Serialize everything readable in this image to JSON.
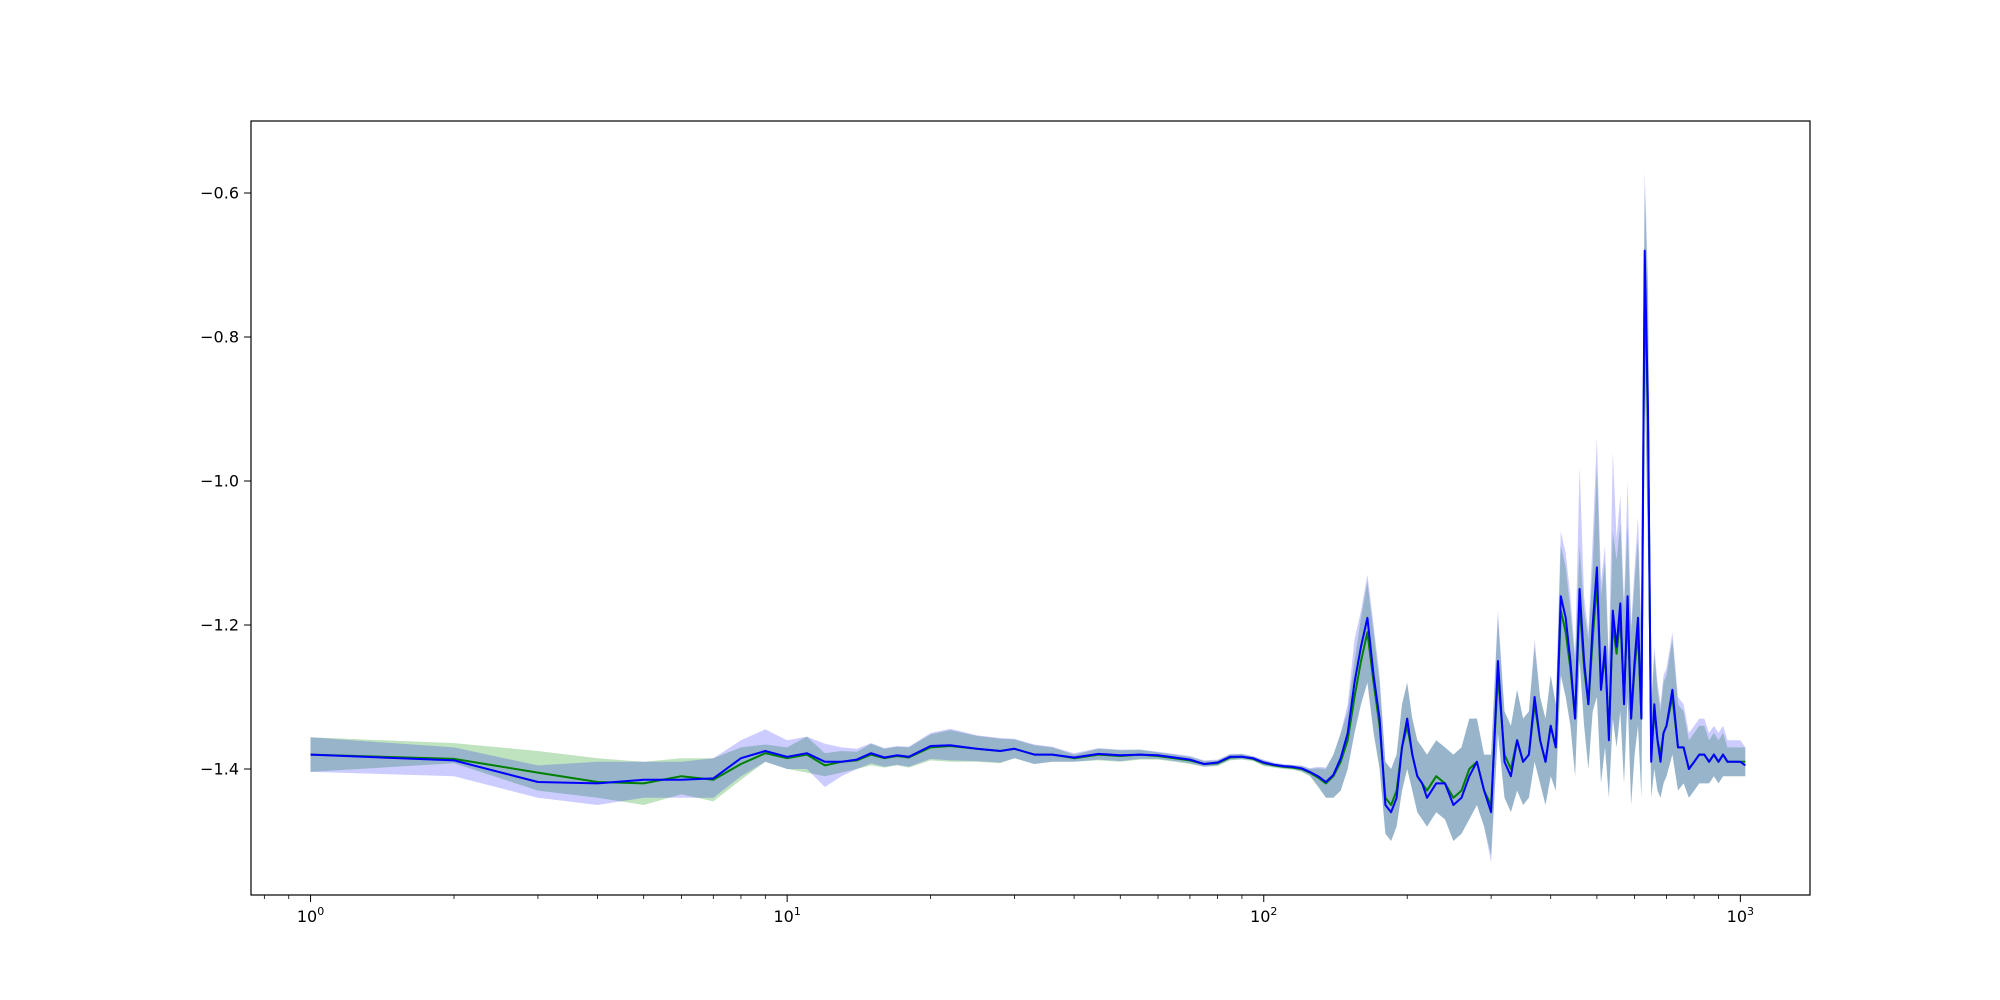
{
  "chart_data": {
    "type": "line",
    "title": "",
    "xlabel": "",
    "ylabel": "",
    "xscale": "log",
    "xlim": [
      0.75,
      1400
    ],
    "ylim": [
      -1.575,
      -0.5
    ],
    "grid": false,
    "legend": "none",
    "x_ticks": [
      {
        "value": 1,
        "base": "10",
        "exp": "0"
      },
      {
        "value": 10,
        "base": "10",
        "exp": "1"
      },
      {
        "value": 100,
        "base": "10",
        "exp": "2"
      },
      {
        "value": 1000,
        "base": "10",
        "exp": "3"
      }
    ],
    "y_ticks": [
      {
        "value": -0.6,
        "label": "−0.6"
      },
      {
        "value": -0.8,
        "label": "−0.8"
      },
      {
        "value": -1.0,
        "label": "−1.0"
      },
      {
        "value": -1.2,
        "label": "−1.2"
      },
      {
        "value": -1.4,
        "label": "−1.4"
      }
    ],
    "x": [
      1,
      2,
      3,
      4,
      5,
      6,
      7,
      8,
      9,
      10,
      11,
      12,
      13,
      14,
      15,
      16,
      17,
      18,
      20,
      22,
      25,
      28,
      30,
      33,
      36,
      40,
      45,
      50,
      55,
      60,
      65,
      70,
      75,
      80,
      85,
      90,
      95,
      100,
      105,
      110,
      115,
      120,
      125,
      130,
      135,
      140,
      145,
      150,
      155,
      160,
      165,
      170,
      175,
      180,
      185,
      190,
      195,
      200,
      205,
      210,
      215,
      220,
      230,
      240,
      250,
      260,
      270,
      280,
      290,
      300,
      310,
      320,
      330,
      340,
      350,
      360,
      370,
      380,
      390,
      400,
      410,
      420,
      430,
      440,
      450,
      460,
      470,
      480,
      490,
      500,
      510,
      520,
      530,
      540,
      550,
      560,
      570,
      580,
      590,
      600,
      610,
      620,
      630,
      640,
      650,
      660,
      670,
      680,
      690,
      700,
      720,
      740,
      760,
      780,
      800,
      820,
      840,
      860,
      880,
      900,
      920,
      940,
      960,
      980,
      1000,
      1024
    ],
    "series": [
      {
        "color": "#008000",
        "band_color": "#2ca02c",
        "band_opacity": 0.3,
        "values": [
          -1.38,
          -1.386,
          -1.405,
          -1.418,
          -1.42,
          -1.41,
          -1.415,
          -1.393,
          -1.378,
          -1.385,
          -1.38,
          -1.395,
          -1.39,
          -1.388,
          -1.38,
          -1.385,
          -1.382,
          -1.384,
          -1.37,
          -1.368,
          -1.372,
          -1.375,
          -1.372,
          -1.38,
          -1.38,
          -1.385,
          -1.38,
          -1.382,
          -1.38,
          -1.382,
          -1.385,
          -1.388,
          -1.393,
          -1.392,
          -1.384,
          -1.383,
          -1.386,
          -1.392,
          -1.395,
          -1.397,
          -1.398,
          -1.4,
          -1.405,
          -1.412,
          -1.42,
          -1.41,
          -1.39,
          -1.36,
          -1.3,
          -1.25,
          -1.21,
          -1.28,
          -1.34,
          -1.44,
          -1.45,
          -1.43,
          -1.37,
          -1.34,
          -1.38,
          -1.41,
          -1.42,
          -1.43,
          -1.41,
          -1.42,
          -1.44,
          -1.43,
          -1.4,
          -1.39,
          -1.43,
          -1.45,
          -1.27,
          -1.38,
          -1.4,
          -1.36,
          -1.39,
          -1.38,
          -1.31,
          -1.36,
          -1.39,
          -1.34,
          -1.37,
          -1.18,
          -1.21,
          -1.26,
          -1.33,
          -1.17,
          -1.26,
          -1.31,
          -1.22,
          -1.14,
          -1.29,
          -1.24,
          -1.35,
          -1.2,
          -1.24,
          -1.19,
          -1.3,
          -1.18,
          -1.33,
          -1.26,
          -1.21,
          -1.33,
          -0.72,
          -0.92,
          -1.38,
          -1.32,
          -1.36,
          -1.38,
          -1.35,
          -1.34,
          -1.3,
          -1.37,
          -1.37,
          -1.4,
          -1.39,
          -1.38,
          -1.38,
          -1.39,
          -1.38,
          -1.39,
          -1.38,
          -1.39,
          -1.39,
          -1.39,
          -1.39,
          -1.39
        ],
        "lower": [
          -1.404,
          -1.392,
          -1.43,
          -1.44,
          -1.45,
          -1.435,
          -1.445,
          -1.415,
          -1.39,
          -1.4,
          -1.405,
          -1.41,
          -1.405,
          -1.4,
          -1.395,
          -1.398,
          -1.395,
          -1.398,
          -1.388,
          -1.39,
          -1.39,
          -1.392,
          -1.385,
          -1.393,
          -1.39,
          -1.39,
          -1.388,
          -1.39,
          -1.387,
          -1.387,
          -1.39,
          -1.393,
          -1.397,
          -1.396,
          -1.388,
          -1.387,
          -1.389,
          -1.396,
          -1.398,
          -1.4,
          -1.401,
          -1.404,
          -1.41,
          -1.425,
          -1.44,
          -1.44,
          -1.43,
          -1.4,
          -1.35,
          -1.31,
          -1.28,
          -1.35,
          -1.4,
          -1.49,
          -1.5,
          -1.48,
          -1.43,
          -1.4,
          -1.43,
          -1.46,
          -1.47,
          -1.48,
          -1.46,
          -1.47,
          -1.5,
          -1.49,
          -1.47,
          -1.45,
          -1.48,
          -1.52,
          -1.35,
          -1.44,
          -1.46,
          -1.43,
          -1.45,
          -1.44,
          -1.39,
          -1.42,
          -1.45,
          -1.41,
          -1.43,
          -1.27,
          -1.3,
          -1.34,
          -1.41,
          -1.25,
          -1.34,
          -1.4,
          -1.32,
          -1.3,
          -1.42,
          -1.37,
          -1.44,
          -1.33,
          -1.37,
          -1.32,
          -1.42,
          -1.3,
          -1.45,
          -1.38,
          -1.34,
          -1.44,
          -0.85,
          -1.1,
          -1.44,
          -1.4,
          -1.43,
          -1.44,
          -1.42,
          -1.41,
          -1.38,
          -1.43,
          -1.42,
          -1.44,
          -1.43,
          -1.42,
          -1.42,
          -1.42,
          -1.41,
          -1.42,
          -1.41,
          -1.41,
          -1.41,
          -1.41,
          -1.41,
          -1.41
        ],
        "upper": [
          -1.356,
          -1.364,
          -1.375,
          -1.385,
          -1.39,
          -1.385,
          -1.385,
          -1.37,
          -1.366,
          -1.37,
          -1.355,
          -1.378,
          -1.375,
          -1.376,
          -1.365,
          -1.372,
          -1.369,
          -1.37,
          -1.352,
          -1.346,
          -1.354,
          -1.358,
          -1.359,
          -1.367,
          -1.37,
          -1.38,
          -1.372,
          -1.374,
          -1.373,
          -1.377,
          -1.38,
          -1.383,
          -1.389,
          -1.388,
          -1.38,
          -1.379,
          -1.383,
          -1.388,
          -1.392,
          -1.394,
          -1.395,
          -1.396,
          -1.4,
          -1.399,
          -1.4,
          -1.38,
          -1.35,
          -1.32,
          -1.25,
          -1.19,
          -1.14,
          -1.21,
          -1.28,
          -1.39,
          -1.4,
          -1.38,
          -1.31,
          -1.28,
          -1.33,
          -1.36,
          -1.37,
          -1.38,
          -1.36,
          -1.37,
          -1.38,
          -1.37,
          -1.33,
          -1.33,
          -1.38,
          -1.38,
          -1.19,
          -1.32,
          -1.34,
          -1.29,
          -1.33,
          -1.32,
          -1.23,
          -1.3,
          -1.33,
          -1.27,
          -1.31,
          -1.09,
          -1.12,
          -1.18,
          -1.25,
          -1.09,
          -1.18,
          -1.22,
          -1.12,
          -0.98,
          -1.16,
          -1.11,
          -1.26,
          -1.07,
          -1.11,
          -1.06,
          -1.18,
          -1.06,
          -1.21,
          -1.14,
          -1.08,
          -1.22,
          -0.59,
          -0.74,
          -1.32,
          -1.24,
          -1.29,
          -1.32,
          -1.28,
          -1.27,
          -1.22,
          -1.31,
          -1.32,
          -1.36,
          -1.35,
          -1.34,
          -1.34,
          -1.36,
          -1.35,
          -1.36,
          -1.35,
          -1.37,
          -1.37,
          -1.37,
          -1.37,
          -1.37
        ]
      },
      {
        "color": "#0000ff",
        "band_color": "#0000ff",
        "band_opacity": 0.2,
        "values": [
          -1.38,
          -1.388,
          -1.418,
          -1.42,
          -1.415,
          -1.415,
          -1.413,
          -1.385,
          -1.375,
          -1.383,
          -1.378,
          -1.39,
          -1.39,
          -1.387,
          -1.378,
          -1.384,
          -1.381,
          -1.383,
          -1.368,
          -1.367,
          -1.372,
          -1.375,
          -1.372,
          -1.38,
          -1.38,
          -1.384,
          -1.379,
          -1.381,
          -1.38,
          -1.381,
          -1.384,
          -1.387,
          -1.393,
          -1.391,
          -1.383,
          -1.383,
          -1.385,
          -1.391,
          -1.394,
          -1.396,
          -1.397,
          -1.399,
          -1.404,
          -1.41,
          -1.418,
          -1.408,
          -1.385,
          -1.35,
          -1.28,
          -1.23,
          -1.19,
          -1.27,
          -1.33,
          -1.45,
          -1.46,
          -1.44,
          -1.37,
          -1.33,
          -1.38,
          -1.41,
          -1.42,
          -1.44,
          -1.42,
          -1.42,
          -1.45,
          -1.44,
          -1.41,
          -1.39,
          -1.43,
          -1.46,
          -1.25,
          -1.39,
          -1.41,
          -1.36,
          -1.39,
          -1.38,
          -1.3,
          -1.36,
          -1.39,
          -1.34,
          -1.37,
          -1.16,
          -1.19,
          -1.25,
          -1.33,
          -1.15,
          -1.25,
          -1.31,
          -1.2,
          -1.12,
          -1.29,
          -1.23,
          -1.36,
          -1.18,
          -1.23,
          -1.17,
          -1.31,
          -1.16,
          -1.33,
          -1.25,
          -1.19,
          -1.33,
          -0.68,
          -0.9,
          -1.39,
          -1.31,
          -1.36,
          -1.39,
          -1.35,
          -1.34,
          -1.29,
          -1.37,
          -1.37,
          -1.4,
          -1.39,
          -1.38,
          -1.38,
          -1.39,
          -1.38,
          -1.39,
          -1.38,
          -1.39,
          -1.39,
          -1.39,
          -1.39,
          -1.395
        ],
        "lower": [
          -1.404,
          -1.41,
          -1.44,
          -1.45,
          -1.44,
          -1.44,
          -1.44,
          -1.41,
          -1.39,
          -1.4,
          -1.4,
          -1.425,
          -1.41,
          -1.4,
          -1.392,
          -1.397,
          -1.394,
          -1.397,
          -1.386,
          -1.388,
          -1.389,
          -1.391,
          -1.385,
          -1.393,
          -1.39,
          -1.39,
          -1.387,
          -1.389,
          -1.386,
          -1.386,
          -1.389,
          -1.392,
          -1.397,
          -1.395,
          -1.387,
          -1.386,
          -1.388,
          -1.395,
          -1.397,
          -1.399,
          -1.4,
          -1.403,
          -1.409,
          -1.424,
          -1.44,
          -1.44,
          -1.43,
          -1.4,
          -1.35,
          -1.31,
          -1.28,
          -1.35,
          -1.4,
          -1.49,
          -1.5,
          -1.48,
          -1.43,
          -1.4,
          -1.43,
          -1.46,
          -1.47,
          -1.48,
          -1.46,
          -1.47,
          -1.5,
          -1.49,
          -1.47,
          -1.45,
          -1.48,
          -1.53,
          -1.35,
          -1.44,
          -1.46,
          -1.43,
          -1.45,
          -1.44,
          -1.39,
          -1.42,
          -1.45,
          -1.41,
          -1.43,
          -1.27,
          -1.3,
          -1.34,
          -1.41,
          -1.25,
          -1.34,
          -1.4,
          -1.32,
          -1.3,
          -1.42,
          -1.37,
          -1.44,
          -1.33,
          -1.37,
          -1.32,
          -1.42,
          -1.3,
          -1.45,
          -1.38,
          -1.34,
          -1.44,
          -0.85,
          -1.1,
          -1.44,
          -1.4,
          -1.43,
          -1.44,
          -1.42,
          -1.41,
          -1.38,
          -1.43,
          -1.42,
          -1.44,
          -1.43,
          -1.42,
          -1.42,
          -1.42,
          -1.41,
          -1.42,
          -1.41,
          -1.41,
          -1.41,
          -1.41,
          -1.41,
          -1.41
        ],
        "upper": [
          -1.356,
          -1.37,
          -1.395,
          -1.39,
          -1.39,
          -1.39,
          -1.385,
          -1.36,
          -1.345,
          -1.36,
          -1.355,
          -1.365,
          -1.37,
          -1.372,
          -1.364,
          -1.371,
          -1.368,
          -1.369,
          -1.35,
          -1.344,
          -1.353,
          -1.357,
          -1.358,
          -1.366,
          -1.369,
          -1.378,
          -1.371,
          -1.373,
          -1.373,
          -1.376,
          -1.379,
          -1.382,
          -1.388,
          -1.387,
          -1.379,
          -1.379,
          -1.382,
          -1.387,
          -1.391,
          -1.393,
          -1.394,
          -1.395,
          -1.399,
          -1.397,
          -1.398,
          -1.38,
          -1.35,
          -1.31,
          -1.22,
          -1.18,
          -1.13,
          -1.2,
          -1.27,
          -1.39,
          -1.4,
          -1.38,
          -1.31,
          -1.28,
          -1.33,
          -1.36,
          -1.37,
          -1.38,
          -1.36,
          -1.37,
          -1.38,
          -1.37,
          -1.33,
          -1.33,
          -1.38,
          -1.38,
          -1.18,
          -1.32,
          -1.34,
          -1.29,
          -1.33,
          -1.32,
          -1.22,
          -1.3,
          -1.33,
          -1.27,
          -1.31,
          -1.07,
          -1.1,
          -1.16,
          -1.24,
          -0.98,
          -1.16,
          -1.21,
          -1.08,
          -0.94,
          -1.14,
          -1.09,
          -1.25,
          -0.96,
          -1.08,
          -1.02,
          -1.17,
          -1.0,
          -1.2,
          -1.12,
          -1.05,
          -1.21,
          -0.57,
          -0.72,
          -1.31,
          -1.23,
          -1.28,
          -1.31,
          -1.27,
          -1.26,
          -1.21,
          -1.3,
          -1.31,
          -1.35,
          -1.34,
          -1.33,
          -1.33,
          -1.35,
          -1.34,
          -1.35,
          -1.34,
          -1.36,
          -1.36,
          -1.36,
          -1.36,
          -1.37
        ]
      }
    ]
  }
}
